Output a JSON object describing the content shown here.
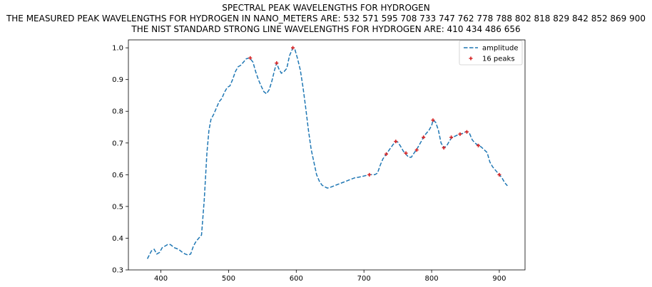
{
  "chart_data": {
    "type": "line",
    "title": "SPECTRAL PEAK WAVELENGTHS FOR HYDROGEN",
    "subtitle": [
      "THE MEASURED PEAK WAVELENGTHS FOR HYDROGEN IN NANO_METERS ARE: 532 571 595 708 733 747 762 778 788 802 818 829 842 852 869 900",
      "THE NIST STANDARD STRONG LINE WAVELENGTHS FOR HYDROGEN ARE: 410 434 486 656"
    ],
    "xlabel": "",
    "ylabel": "",
    "xlim": [
      352,
      938
    ],
    "ylim": [
      0.3,
      1.025
    ],
    "xticks": [
      400,
      500,
      600,
      700,
      800,
      900
    ],
    "yticks": [
      0.3,
      0.4,
      0.5,
      0.6,
      0.7,
      0.8,
      0.9,
      1.0
    ],
    "grid": false,
    "legend": {
      "placement": "top-right",
      "entries": [
        "amplitude",
        "16 peaks"
      ]
    },
    "series": [
      {
        "name": "amplitude",
        "style": "dashed",
        "color": "#1f77b4",
        "x": [
          380,
          386,
          390,
          394,
          398,
          402,
          406,
          410,
          414,
          420,
          426,
          432,
          436,
          440,
          444,
          448,
          452,
          456,
          460,
          464,
          468,
          471,
          474,
          478,
          482,
          486,
          490,
          494,
          498,
          502,
          506,
          510,
          514,
          518,
          522,
          526,
          530,
          532,
          536,
          540,
          544,
          548,
          552,
          556,
          560,
          564,
          568,
          571,
          574,
          578,
          582,
          586,
          590,
          595,
          598,
          602,
          606,
          610,
          614,
          618,
          622,
          626,
          630,
          634,
          638,
          642,
          646,
          650,
          656,
          662,
          668,
          674,
          680,
          686,
          692,
          698,
          704,
          708,
          712,
          716,
          720,
          724,
          728,
          733,
          738,
          743,
          747,
          750,
          754,
          758,
          762,
          766,
          770,
          774,
          778,
          782,
          786,
          788,
          792,
          796,
          800,
          802,
          806,
          810,
          814,
          818,
          822,
          826,
          829,
          833,
          838,
          842,
          846,
          850,
          852,
          856,
          860,
          864,
          869,
          873,
          877,
          882,
          886,
          890,
          894,
          898,
          900,
          904,
          908,
          912
        ],
        "y": [
          0.335,
          0.36,
          0.365,
          0.35,
          0.355,
          0.37,
          0.375,
          0.38,
          0.38,
          0.37,
          0.365,
          0.355,
          0.35,
          0.347,
          0.35,
          0.375,
          0.39,
          0.4,
          0.41,
          0.52,
          0.67,
          0.74,
          0.775,
          0.79,
          0.81,
          0.83,
          0.84,
          0.86,
          0.875,
          0.88,
          0.9,
          0.925,
          0.94,
          0.945,
          0.955,
          0.965,
          0.968,
          0.966,
          0.955,
          0.925,
          0.9,
          0.88,
          0.862,
          0.855,
          0.868,
          0.895,
          0.93,
          0.952,
          0.935,
          0.92,
          0.925,
          0.935,
          0.975,
          1.0,
          0.995,
          0.965,
          0.93,
          0.875,
          0.81,
          0.74,
          0.68,
          0.64,
          0.6,
          0.58,
          0.567,
          0.562,
          0.558,
          0.56,
          0.565,
          0.57,
          0.575,
          0.58,
          0.585,
          0.59,
          0.592,
          0.595,
          0.598,
          0.6,
          0.6,
          0.6,
          0.605,
          0.63,
          0.65,
          0.665,
          0.68,
          0.695,
          0.705,
          0.703,
          0.69,
          0.675,
          0.665,
          0.655,
          0.655,
          0.668,
          0.68,
          0.695,
          0.71,
          0.72,
          0.73,
          0.74,
          0.755,
          0.772,
          0.765,
          0.74,
          0.7,
          0.685,
          0.69,
          0.705,
          0.715,
          0.72,
          0.725,
          0.728,
          0.73,
          0.735,
          0.736,
          0.73,
          0.71,
          0.7,
          0.692,
          0.688,
          0.68,
          0.67,
          0.64,
          0.625,
          0.615,
          0.605,
          0.6,
          0.59,
          0.575,
          0.565
        ]
      },
      {
        "name": "16 peaks",
        "style": "markers",
        "color": "#d62728",
        "x": [
          532,
          571,
          595,
          708,
          733,
          747,
          762,
          778,
          788,
          802,
          818,
          829,
          842,
          852,
          869,
          900
        ],
        "y": [
          0.968,
          0.952,
          1.0,
          0.6,
          0.665,
          0.705,
          0.668,
          0.678,
          0.718,
          0.772,
          0.685,
          0.718,
          0.728,
          0.735,
          0.692,
          0.6
        ]
      }
    ]
  }
}
